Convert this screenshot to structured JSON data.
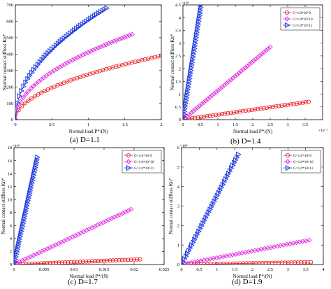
{
  "captions": [
    "(a) D=1.1",
    "(b) D=1.4",
    "(c) D=1.7",
    "(d) D=1.9"
  ],
  "chart_data": [
    {
      "type": "scatter",
      "caption": "(a) D=1.1",
      "xlabel": "Normal load P*/(N)",
      "ylabel": "Normal contact stiffless Kn*",
      "xlim": [
        0,
        2
      ],
      "ylim": [
        0,
        700
      ],
      "xticks": [
        0,
        0.5,
        1,
        1.5,
        2
      ],
      "xtick_labels": [
        "0",
        "0.5",
        "1",
        "1.5",
        "2"
      ],
      "yticks": [
        0,
        100,
        200,
        300,
        400,
        500,
        600,
        700
      ],
      "ytick_labels": [
        "0",
        "100",
        "200",
        "300",
        "400",
        "500",
        "600",
        "700"
      ],
      "x_exponent": "",
      "y_exponent": "",
      "legend_position": "none",
      "series": [
        {
          "name": "G=1.0*10^9",
          "color": "#e8262a",
          "marker": "circle",
          "x_max": 2.0,
          "y_max": 390,
          "power": 0.5
        },
        {
          "name": "G=1.0*10^10",
          "color": "#e02ce0",
          "marker": "diamond",
          "x_max": 1.6,
          "y_max": 520,
          "power": 0.5
        },
        {
          "name": "G=1.0*10^11",
          "color": "#1f3ae0",
          "marker": "triangle",
          "x_max": 1.25,
          "y_max": 680,
          "power": 0.5
        }
      ]
    },
    {
      "type": "scatter",
      "caption": "(b) D=1.4",
      "xlabel": "Normal load P*/(N)",
      "ylabel": "Normal contact stiffless Kn*",
      "xlim": [
        0,
        4
      ],
      "ylim": [
        0,
        4.5
      ],
      "xticks": [
        0,
        0.5,
        1,
        1.5,
        2,
        2.5,
        3,
        3.5
      ],
      "xtick_labels": [
        "0",
        "0.5",
        "1",
        "1.5",
        "2",
        "2.5",
        "3",
        "3.5"
      ],
      "yticks": [
        0,
        0.5,
        1,
        1.5,
        2,
        2.5,
        3,
        3.5,
        4,
        4.5
      ],
      "ytick_labels": [
        "0",
        "0.5",
        "1",
        "1.5",
        "2",
        "2.5",
        "3",
        "3.5",
        "4",
        "4.5"
      ],
      "x_exponent": "×10⁻³",
      "y_exponent": "×10⁴",
      "legend_position": "top-right",
      "series": [
        {
          "name": "G=1.0*10^9",
          "color": "#e8262a",
          "marker": "circle",
          "x_max": 3.6,
          "y_max": 0.7,
          "power": 1
        },
        {
          "name": "G=1.0*10^10",
          "color": "#e02ce0",
          "marker": "diamond",
          "x_max": 2.5,
          "y_max": 2.85,
          "power": 1
        },
        {
          "name": "G=1.0*10^11",
          "color": "#1f3ae0",
          "marker": "triangle",
          "x_max": 0.52,
          "y_max": 4.5,
          "power": 1
        }
      ]
    },
    {
      "type": "scatter",
      "caption": "(c) D=1.7",
      "xlabel": "Normal load P*/(N)",
      "ylabel": "Normal contact stiffless Kn*",
      "xlim": [
        0,
        0.025
      ],
      "ylim": [
        0,
        18
      ],
      "xticks": [
        0,
        0.005,
        0.01,
        0.015,
        0.02,
        0.025
      ],
      "xtick_labels": [
        "0",
        "0.005",
        "0.01",
        "0.015",
        "0.02",
        "0.025"
      ],
      "yticks": [
        0,
        2,
        4,
        6,
        8,
        10,
        12,
        14,
        16,
        18
      ],
      "ytick_labels": [
        "0",
        "2",
        "4",
        "6",
        "8",
        "10",
        "12",
        "14",
        "16",
        "18"
      ],
      "x_exponent": "",
      "y_exponent": "×10⁶",
      "legend_position": "top-right",
      "series": [
        {
          "name": "G=1.0*10^9",
          "color": "#e8262a",
          "marker": "circle",
          "x_max": 0.021,
          "y_max": 0.8,
          "power": 1
        },
        {
          "name": "G=1.0*10^10",
          "color": "#e02ce0",
          "marker": "diamond",
          "x_max": 0.0195,
          "y_max": 8.5,
          "power": 1
        },
        {
          "name": "G=1.0*10^11",
          "color": "#1f3ae0",
          "marker": "triangle",
          "x_max": 0.0039,
          "y_max": 16.5,
          "power": 1
        }
      ]
    },
    {
      "type": "scatter",
      "caption": "(d) D=1.9",
      "xlabel": "Normal load P*/(N)",
      "ylabel": "Normal contact stiffless Kn*",
      "xlim": [
        0,
        4
      ],
      "ylim": [
        0,
        6
      ],
      "xticks": [
        0,
        0.5,
        1,
        1.5,
        2,
        2.5,
        3,
        3.5,
        4
      ],
      "xtick_labels": [
        "0",
        "0.5",
        "1",
        "1.5",
        "2",
        "2.5",
        "3",
        "3.5",
        "4"
      ],
      "yticks": [
        0,
        1,
        2,
        3,
        4,
        5,
        6
      ],
      "ytick_labels": [
        "0",
        "1",
        "2",
        "3",
        "4",
        "5",
        "6"
      ],
      "x_exponent": "",
      "y_exponent": "×10⁸",
      "legend_position": "top-right",
      "series": [
        {
          "name": "G=1.0*10^9",
          "color": "#e8262a",
          "marker": "circle",
          "x_max": 3.65,
          "y_max": 0.12,
          "power": 1
        },
        {
          "name": "G=1.0*10^10",
          "color": "#e02ce0",
          "marker": "diamond",
          "x_max": 3.6,
          "y_max": 1.25,
          "power": 1
        },
        {
          "name": "G=1.0*10^11",
          "color": "#1f3ae0",
          "marker": "triangle",
          "x_max": 1.6,
          "y_max": 5.65,
          "power": 1
        }
      ]
    }
  ]
}
